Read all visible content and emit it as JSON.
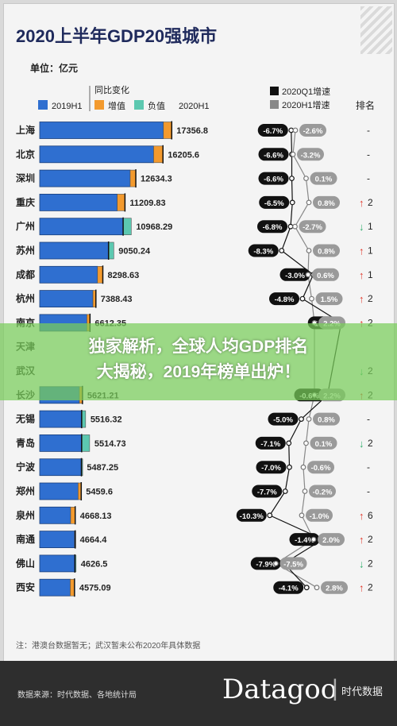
{
  "chart_data": {
    "type": "bar",
    "title": "2020上半年GDP20强城市",
    "unit_label": "单位：亿元",
    "legend": {
      "group_title": "同比变化",
      "base": "2019H1",
      "increase": "增值",
      "decrease": "负值",
      "current": "2020H1",
      "q1": "2020Q1增速",
      "h1": "2020H1增速",
      "rank": "排名"
    },
    "colors": {
      "base": "#2f6fd0",
      "increase": "#f39a2e",
      "decrease": "#5cc8b0",
      "text": "#1f2a5c"
    },
    "categories": [
      "上海",
      "北京",
      "深圳",
      "重庆",
      "广州",
      "苏州",
      "成都",
      "杭州",
      "南京",
      "天津",
      "武汉",
      "长沙",
      "无锡",
      "青岛",
      "宁波",
      "郑州",
      "泉州",
      "南通",
      "佛山",
      "西安"
    ],
    "values_2020H1": [
      17356.8,
      16205.6,
      12634.3,
      11209.83,
      10968.29,
      9050.24,
      8298.63,
      7388.43,
      6612.35,
      null,
      null,
      5621.21,
      5516.32,
      5514.73,
      5487.25,
      5459.6,
      4668.13,
      4664.4,
      4626.5,
      4575.09
    ],
    "labels_2020H1": [
      "17356.8",
      "16205.6",
      "12634.3",
      "11209.83",
      "10968.29",
      "9050.24",
      "8298.63",
      "7388.43",
      "6612.35",
      "",
      "",
      "5621.21",
      "5516.32",
      "5514.73",
      "5487.25",
      "5459.6",
      "4668.13",
      "4664.4",
      "4626.5",
      "4575.09"
    ],
    "change_sign": [
      "+",
      "+",
      "+",
      "+",
      "-",
      "-",
      "+",
      "+",
      "+",
      "+",
      "+",
      "+",
      "-",
      "-",
      "-",
      "+",
      "+",
      "+",
      "-",
      "+"
    ],
    "change_value": [
      1096,
      1230,
      740,
      1020,
      1070,
      690,
      700,
      390,
      410,
      0,
      0,
      400,
      520,
      1050,
      80,
      410,
      600,
      90,
      150,
      560
    ],
    "q1_growth": [
      "-6.7%",
      "-6.6%",
      "-6.6%",
      "-6.5%",
      "-6.8%",
      "-8.3%",
      "-3.0%",
      "-4.8%",
      "1.7%",
      "",
      "",
      "-0.6%",
      "-5.0%",
      "-7.1%",
      "-7.0%",
      "-7.7%",
      "-10.3%",
      "-1.4%",
      "-7.9%",
      "-4.1%"
    ],
    "q1_numeric": [
      -6.7,
      -6.6,
      -6.6,
      -6.5,
      -6.8,
      -8.3,
      -3.0,
      -4.8,
      1.7,
      null,
      null,
      -0.6,
      -5.0,
      -7.1,
      -7.0,
      -7.7,
      -10.3,
      -1.4,
      -7.9,
      -4.1
    ],
    "h1_growth": [
      "-2.6%",
      "-3.2%",
      "0.1%",
      "0.8%",
      "-2.7%",
      "0.8%",
      "0.6%",
      "1.5%",
      "2.2%",
      "",
      "",
      "2.2%",
      "0.8%",
      "0.1%",
      "-0.6%",
      "-0.2%",
      "-1.0%",
      "2.0%",
      "-7.5%",
      "2.8%"
    ],
    "h1_numeric": [
      -2.6,
      -3.2,
      0.1,
      0.8,
      -2.7,
      0.8,
      0.6,
      1.5,
      2.2,
      null,
      null,
      2.2,
      0.8,
      0.1,
      -0.6,
      -0.2,
      -1.0,
      2.0,
      -7.5,
      2.8
    ],
    "rank_change": [
      "-",
      "-",
      "-",
      "2",
      "1",
      "1",
      "1",
      "2",
      "2",
      "",
      "2",
      "2",
      "-",
      "2",
      "-",
      "-",
      "6",
      "2",
      "2",
      "2"
    ],
    "rank_dir": [
      "none",
      "none",
      "none",
      "up",
      "down",
      "up",
      "up",
      "up",
      "up",
      "",
      "down",
      "up",
      "none",
      "down",
      "none",
      "none",
      "up",
      "up",
      "down",
      "up"
    ]
  },
  "footnote": "注：港澳台数据暂无；武汉暂未公布2020年具体数据",
  "footer": {
    "source": "数据来源：时代数据、各地统计局",
    "brand": "Datagoo",
    "brand_sep": "|",
    "brand_cn": "时代数据"
  },
  "banner": {
    "line1": "独家解析，全球人均GDP排名",
    "line2": "大揭秘，2019年榜单出炉！"
  }
}
